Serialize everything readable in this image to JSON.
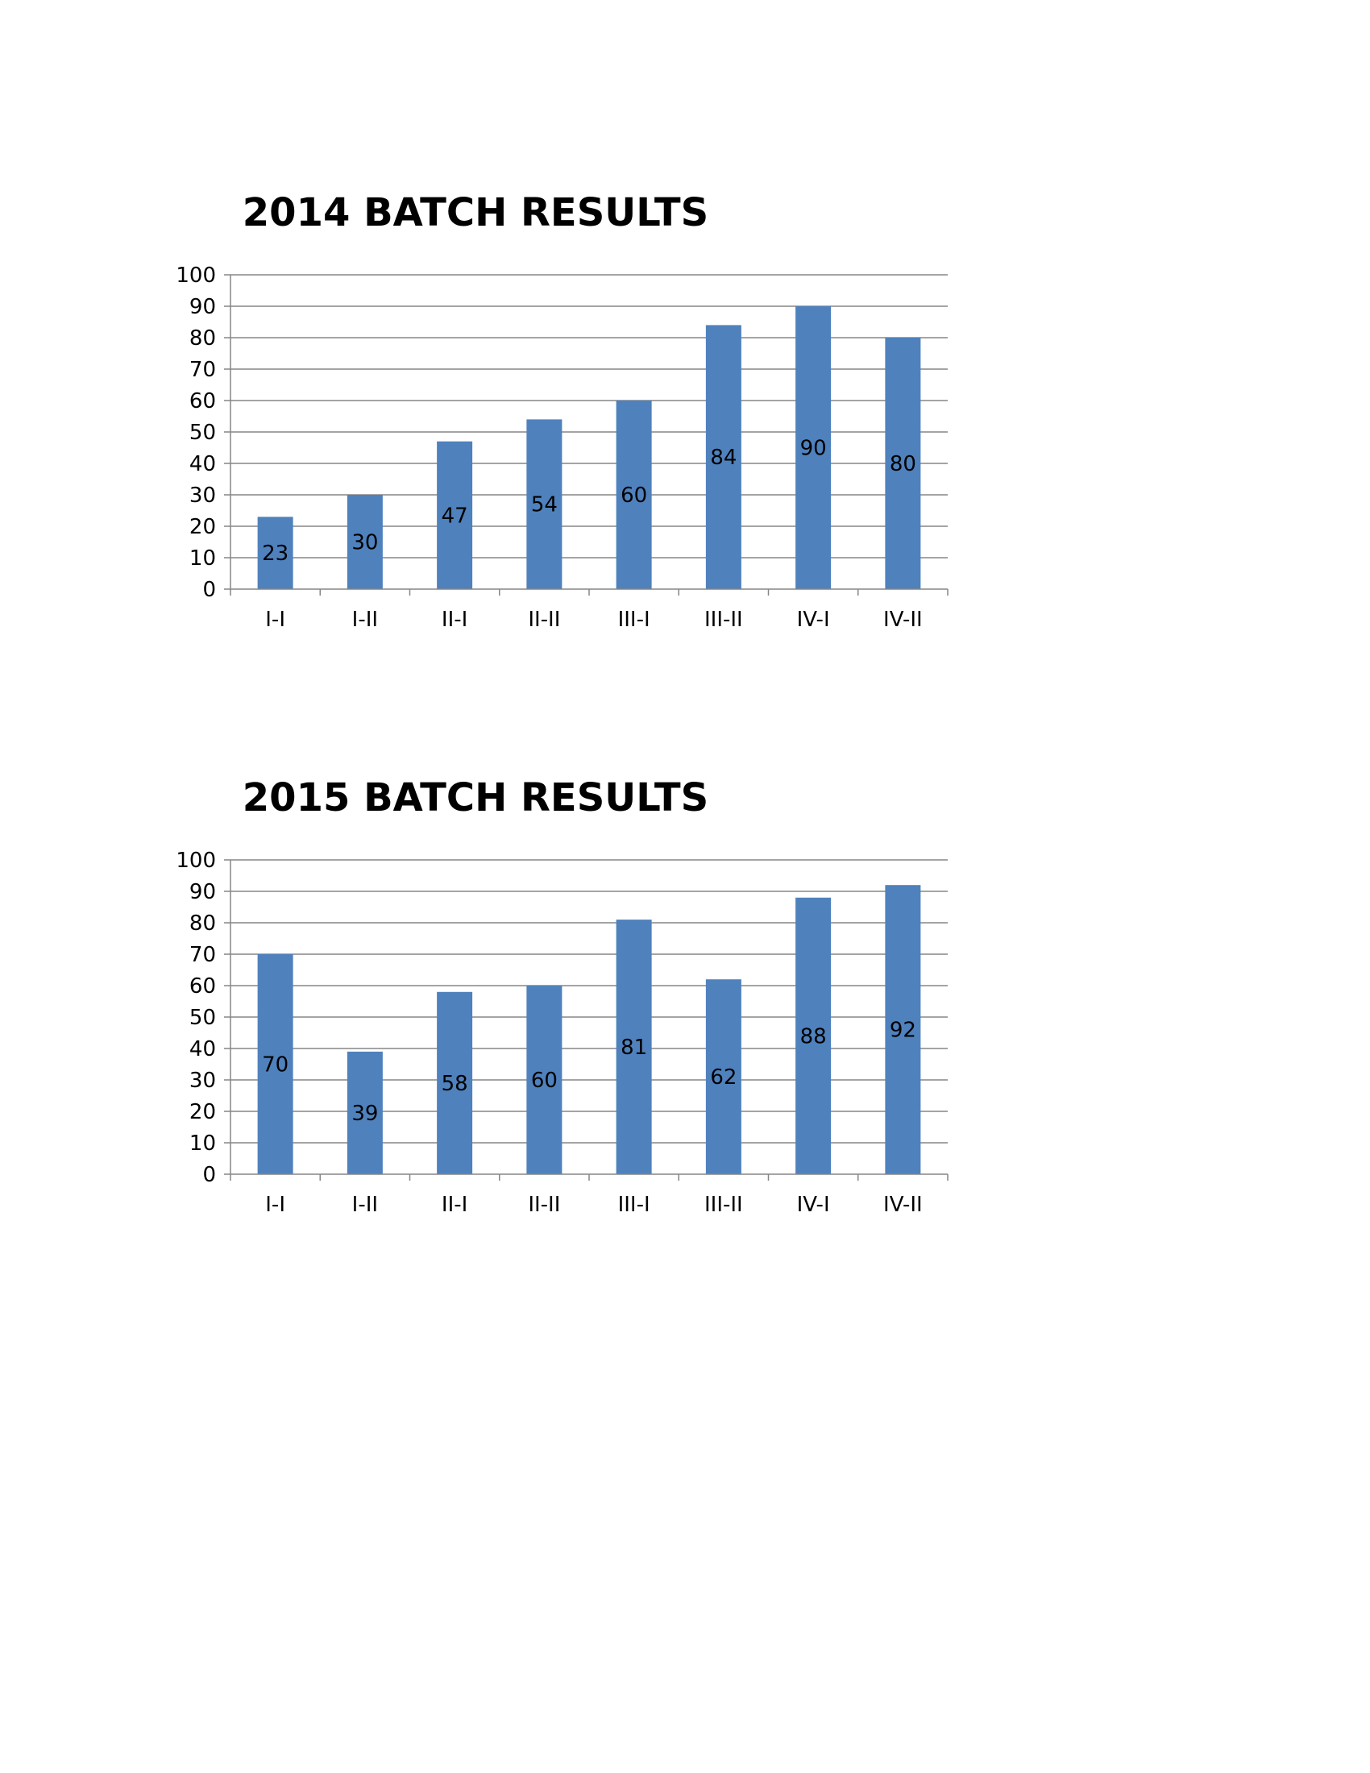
{
  "chart_data": [
    {
      "type": "bar",
      "title": "2014 BATCH RESULTS",
      "categories": [
        "I-I",
        "I-II",
        "II-I",
        "II-II",
        "III-I",
        "III-II",
        "IV-I",
        "IV-II"
      ],
      "values": [
        23,
        30,
        47,
        54,
        60,
        84,
        90,
        80
      ],
      "xlabel": "",
      "ylabel": "",
      "ylim": [
        0,
        100
      ],
      "yticks": [
        0,
        10,
        20,
        30,
        40,
        50,
        60,
        70,
        80,
        90,
        100
      ],
      "grid": true,
      "legend": "none",
      "data_labels": "center",
      "bar_color": "#4F81BD"
    },
    {
      "type": "bar",
      "title": "2015 BATCH RESULTS",
      "categories": [
        "I-I",
        "I-II",
        "II-I",
        "II-II",
        "III-I",
        "III-II",
        "IV-I",
        "IV-II"
      ],
      "values": [
        70,
        39,
        58,
        60,
        81,
        62,
        88,
        92
      ],
      "xlabel": "",
      "ylabel": "",
      "ylim": [
        0,
        100
      ],
      "yticks": [
        0,
        10,
        20,
        30,
        40,
        50,
        60,
        70,
        80,
        90,
        100
      ],
      "grid": true,
      "legend": "none",
      "data_labels": "center",
      "bar_color": "#4F81BD"
    }
  ],
  "colors": {
    "gridline": "#868686",
    "axis": "#868686",
    "text": "#000000"
  }
}
